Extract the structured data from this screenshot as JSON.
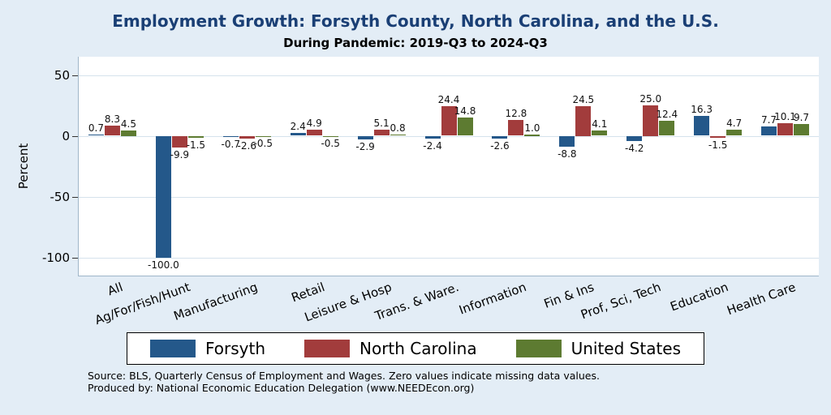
{
  "chart_data": {
    "type": "bar",
    "title": "Employment Growth: Forsyth County, North Carolina, and the U.S.",
    "subtitle": "During Pandemic: 2019-Q3 to 2024-Q3",
    "ylabel": "Percent",
    "yticks": [
      50,
      0,
      -50,
      -100
    ],
    "ylim": [
      -115,
      65
    ],
    "grid": true,
    "legend_position": "bottom",
    "background_color": "#e3edf6",
    "categories": [
      "All",
      "Ag/For/Fish/Hunt",
      "Manufacturing",
      "Retail",
      "Leisure & Hosp",
      "Trans. & Ware.",
      "Information",
      "Fin & Ins",
      "Prof, Sci, Tech",
      "Education",
      "Health Care"
    ],
    "series": [
      {
        "name": "Forsyth",
        "color": "#24588a",
        "values": [
          0.7,
          -100.0,
          -0.7,
          2.4,
          -2.9,
          -2.4,
          -2.6,
          -8.8,
          -4.2,
          16.3,
          7.7
        ]
      },
      {
        "name": "North Carolina",
        "color": "#a23c3c",
        "values": [
          8.3,
          -9.9,
          -2.6,
          4.9,
          5.1,
          24.4,
          12.8,
          24.5,
          25.0,
          -1.5,
          10.1
        ]
      },
      {
        "name": "United States",
        "color": "#5d7b31",
        "values": [
          4.5,
          -1.5,
          -0.5,
          -0.5,
          0.8,
          14.8,
          1.0,
          4.1,
          12.4,
          4.7,
          9.7
        ]
      }
    ]
  },
  "footer": {
    "source": "Source: BLS, Quarterly Census of Employment and Wages. Zero values indicate missing data values.",
    "produced": "Produced by: National Economic Education Delegation (www.NEEDEcon.org)"
  }
}
